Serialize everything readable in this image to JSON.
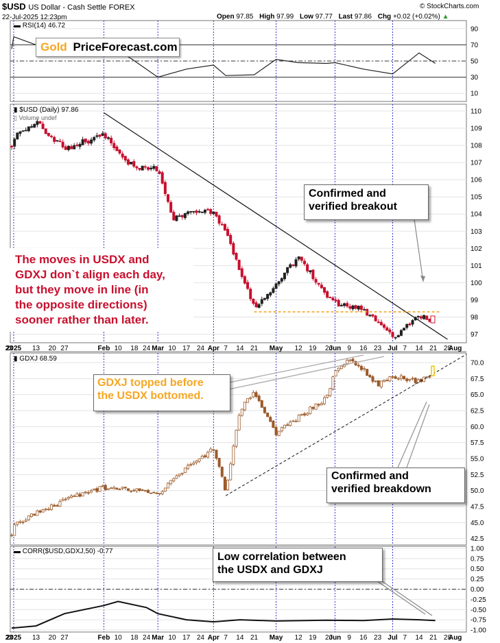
{
  "header": {
    "symbol": "$USD",
    "name": "US Dollar - Cash Settle",
    "exchange": "FOREX",
    "datetime": "22-Jul-2025 12:23pm",
    "open_label": "Open",
    "open": "97.85",
    "high_label": "High",
    "high": "97.99",
    "low_label": "Low",
    "low": "97.77",
    "last_label": "Last",
    "last": "97.86",
    "chg_label": "Chg",
    "chg": "+0.02 (+0.02%)",
    "copyright": "© StockCharts.com"
  },
  "logo": {
    "gold": "Gold",
    "site": "PriceForecast.com"
  },
  "colors": {
    "up": "#222222",
    "down": "#c8102e",
    "gdxj": "#9b5a2a",
    "orange": "#f5a623",
    "grid": "#cccccc",
    "vline": "#3333cc"
  },
  "annotations": {
    "breakout": [
      "Confirmed and",
      "verified breakout"
    ],
    "red_text": [
      "The moves in USDX and",
      "GDXJ don`t align each day,",
      "but they move in line (in",
      "the opposite directions)",
      "sooner rather than later."
    ],
    "gdxj_topped": [
      "GDXJ topped before",
      "the USDX bottomed."
    ],
    "breakdown": [
      "Confirmed and",
      "verified breakdown"
    ],
    "low_corr": [
      "Low correlation between",
      "the USDX and GDXJ"
    ]
  },
  "chart_data": [
    {
      "type": "line",
      "title": "RSI(14) 46.72",
      "yticks": [
        "90",
        "70",
        "50",
        "30",
        "10"
      ],
      "ylim": [
        0,
        100
      ],
      "reference_lines": [
        70,
        50,
        30
      ],
      "x": [
        "Dec 20",
        "Jan 2",
        "Jan 13",
        "Jan 27",
        "Feb 3",
        "Feb 17",
        "Mar 3",
        "Mar 17",
        "Apr 1",
        "Apr 7",
        "Apr 21",
        "May 1",
        "May 12",
        "May 26",
        "Jun 2",
        "Jun 16",
        "Jul 1",
        "Jul 14",
        "Jul 22"
      ],
      "y": [
        65,
        80,
        70,
        66,
        74,
        52,
        30,
        40,
        45,
        32,
        33,
        52,
        48,
        47,
        48,
        40,
        34,
        60,
        47
      ]
    },
    {
      "type": "candlestick",
      "title": "$USD (Daily) 97.86",
      "subtitle": "Volume undef",
      "yticks": [
        "110",
        "109",
        "108",
        "107",
        "106",
        "105",
        "104",
        "103",
        "102",
        "101",
        "100",
        "99",
        "98",
        "97"
      ],
      "ylim": [
        96.5,
        110.4
      ],
      "x_labels": [
        "23",
        "2025",
        "13",
        "20",
        "27",
        "Feb",
        "10",
        "18",
        "24",
        "Mar",
        "10",
        "17",
        "24",
        "Apr",
        "7",
        "14",
        "21",
        "May",
        "12",
        "19",
        "26",
        "Jun",
        "9",
        "16",
        "23",
        "Jul",
        "7",
        "14",
        "21",
        "28",
        "Aug"
      ],
      "trendline": {
        "from": [
          "Feb 3",
          109.9
        ],
        "to": [
          "Jul 28",
          96.7
        ]
      },
      "support_level": 98.3,
      "series": [
        {
          "name": "$USD",
          "x": [
            "Dec 20",
            "Jan 2",
            "Jan 13",
            "Jan 27",
            "Feb 3",
            "Feb 17",
            "Mar 3",
            "Mar 10",
            "Mar 24",
            "Apr 1",
            "Apr 7",
            "Apr 21",
            "May 1",
            "May 12",
            "May 26",
            "Jun 2",
            "Jun 16",
            "Jul 1",
            "Jul 14",
            "Jul 22"
          ],
          "y": [
            107.9,
            108.5,
            109.4,
            107.8,
            108.6,
            106.8,
            106.6,
            103.8,
            104.2,
            104.1,
            103.0,
            98.6,
            99.9,
            101.5,
            99.2,
            98.8,
            98.4,
            96.8,
            98.0,
            97.86
          ]
        }
      ]
    },
    {
      "type": "candlestick",
      "title": "GDXJ 68.59",
      "yticks": [
        "70.0",
        "67.5",
        "65.0",
        "62.5",
        "60.0",
        "57.5",
        "55.0",
        "52.5",
        "50.0",
        "47.5",
        "45.0",
        "42.5"
      ],
      "ylim": [
        41.5,
        71.5
      ],
      "x_labels": [
        "23",
        "2025",
        "13",
        "20",
        "27",
        "Feb",
        "10",
        "18",
        "24",
        "Mar",
        "10",
        "17",
        "24",
        "Apr",
        "7",
        "14",
        "21",
        "May",
        "12",
        "19",
        "26",
        "Jun",
        "9",
        "16",
        "23",
        "Jul",
        "7",
        "14",
        "21",
        "28",
        "Aug"
      ],
      "support_line": {
        "from": [
          "Apr 7",
          49.2
        ],
        "to": [
          "Jul 28",
          71.3
        ]
      },
      "series": [
        {
          "name": "GDXJ",
          "x": [
            "Dec 20",
            "Jan 2",
            "Jan 13",
            "Jan 27",
            "Feb 3",
            "Feb 17",
            "Mar 3",
            "Mar 17",
            "Apr 1",
            "Apr 7",
            "Apr 14",
            "Apr 21",
            "May 1",
            "May 12",
            "May 26",
            "Jun 2",
            "Jun 9",
            "Jun 16",
            "Jun 23",
            "Jul 1",
            "Jul 14",
            "Jul 22"
          ],
          "y": [
            43.0,
            44.5,
            46.5,
            48.5,
            50.5,
            50.0,
            49.5,
            53.5,
            56.5,
            50.0,
            62.5,
            65.5,
            59.0,
            61.5,
            64.5,
            68.5,
            70.5,
            69.0,
            66.5,
            68.0,
            67.0,
            68.59
          ]
        }
      ]
    },
    {
      "type": "line",
      "title": "CORR($USD,GDXJ,50) -0.77",
      "yticks": [
        "1.00",
        "0.75",
        "0.50",
        "0.25",
        "0.00",
        "-0.25",
        "-0.50",
        "-0.75",
        "-1.00"
      ],
      "ylim": [
        -1.05,
        1.05
      ],
      "reference_lines": [
        0.0
      ],
      "x": [
        "Dec 20",
        "Jan 2",
        "Jan 13",
        "Jan 27",
        "Feb 3",
        "Feb 10",
        "Feb 24",
        "Mar 3",
        "Mar 17",
        "Apr 1",
        "Apr 14",
        "May 1",
        "May 26",
        "Jun 16",
        "Jul 1",
        "Jul 14",
        "Jul 22"
      ],
      "y": [
        -0.95,
        -0.95,
        -0.9,
        -0.6,
        -0.4,
        -0.3,
        -0.45,
        -0.6,
        -0.75,
        -0.8,
        -0.75,
        -0.78,
        -0.76,
        -0.77,
        -0.73,
        -0.75,
        -0.77
      ]
    }
  ]
}
